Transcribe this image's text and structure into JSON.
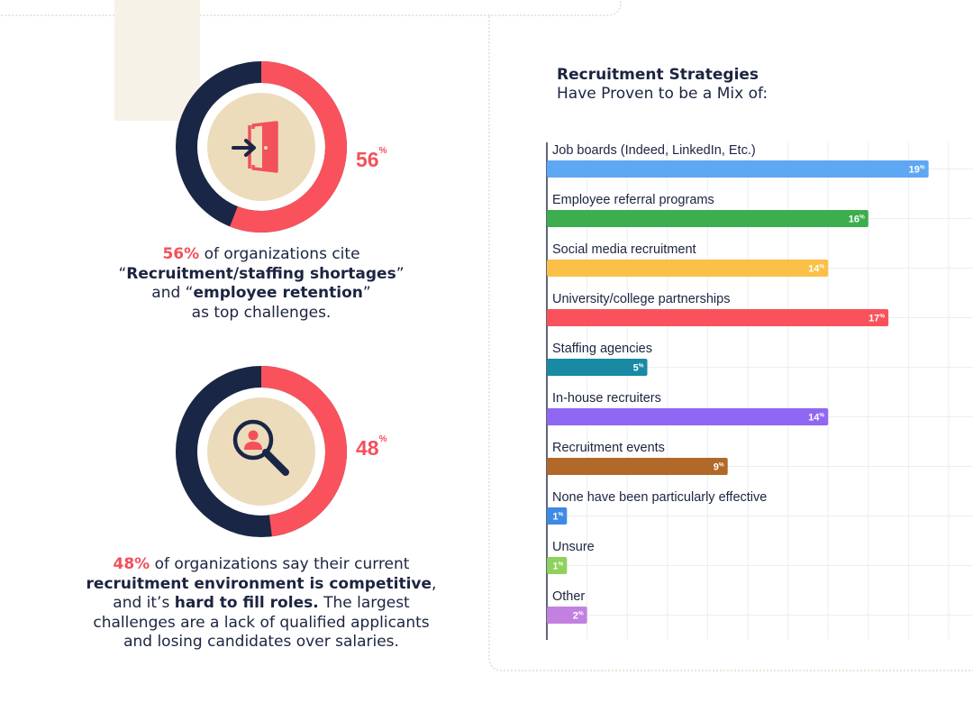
{
  "stats": [
    {
      "pct_label": "56",
      "pct_sup": "%",
      "value": 56,
      "icon": "door-exit-icon",
      "lead": "56%",
      "t1": " of organizations cite",
      "q_open": "“",
      "b1": "Recruitment/staffing shortages",
      "q_close": "”",
      "t2": "and “",
      "b2": "employee retention",
      "t3": "”",
      "t4": "as top challenges."
    },
    {
      "pct_label": "48",
      "pct_sup": "%",
      "value": 48,
      "icon": "magnifier-person-icon",
      "lead": "48%",
      "t1": " of organizations say their current",
      "b1": "recruitment environment is competitive",
      "t2": ",",
      "t3": "and it’s ",
      "b2": "hard to fill roles.",
      "t4": " The largest",
      "t5": "challenges are a lack of qualified applicants",
      "t6": "and losing candidates over salaries."
    }
  ],
  "colors": {
    "accent_red": "#f2515a",
    "navy": "#1a2645",
    "beige": "#ecdcbc"
  },
  "chart_data": {
    "type": "bar",
    "orientation": "horizontal",
    "title_line1": "Recruitment Strategies",
    "title_line2": "Have Proven to be a Mix of:",
    "categories": [
      "Job boards (Indeed, LinkedIn, Etc.)",
      "Employee referral programs",
      "Social media recruitment",
      "University/college partnerships",
      "Staffing agencies",
      "In-house recruiters",
      "Recruitment events",
      "None have been particularly effective",
      "Unsure",
      "Other"
    ],
    "values": [
      19,
      16,
      14,
      17,
      5,
      14,
      9,
      1,
      1,
      2
    ],
    "value_suffix": "%",
    "colors": [
      "#5ea8f3",
      "#3cae4d",
      "#fbc047",
      "#f9525c",
      "#188aa3",
      "#8f67f2",
      "#b16828",
      "#3d8ae4",
      "#8ed15b",
      "#c281e0"
    ],
    "grid": true
  }
}
